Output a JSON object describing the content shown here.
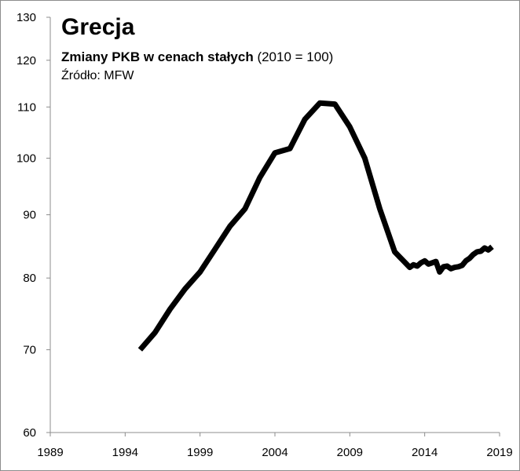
{
  "chart_data": {
    "type": "line",
    "title": "Grecja",
    "subtitle_bold": "Zmiany PKB w cenach stałych",
    "subtitle_rest": "(2010 = 100)",
    "source": "Źródło: MFW",
    "xlabel": "",
    "ylabel": "",
    "y_scale": "log",
    "xlim": [
      1989,
      2019
    ],
    "ylim": [
      60,
      130
    ],
    "x_ticks": [
      1989,
      1994,
      1999,
      2004,
      2009,
      2014,
      2019
    ],
    "y_ticks": [
      60,
      70,
      80,
      90,
      100,
      110,
      120,
      130
    ],
    "grid": false,
    "legend": "none",
    "line_color": "#000000",
    "series": [
      {
        "x": [
          1995,
          1996,
          1997,
          1998,
          1999,
          2000,
          2001,
          2002,
          2003,
          2004,
          2005,
          2006,
          2007,
          2008,
          2009,
          2010,
          2011,
          2012,
          2013,
          2013.25,
          2013.5,
          2013.75,
          2014,
          2014.25,
          2014.5,
          2014.75,
          2015,
          2015.25,
          2015.5,
          2015.75,
          2016,
          2016.25,
          2016.5,
          2016.75,
          2017,
          2017.25,
          2017.5,
          2017.75,
          2018,
          2018.25,
          2018.5
        ],
        "y": [
          70.0,
          72.3,
          75.5,
          78.4,
          80.9,
          84.4,
          88.1,
          91.0,
          96.5,
          101.0,
          101.8,
          107.5,
          110.8,
          110.6,
          106.0,
          100.0,
          91.0,
          84.0,
          81.6,
          82.0,
          81.8,
          82.3,
          82.6,
          82.1,
          82.3,
          82.5,
          80.9,
          81.7,
          81.8,
          81.4,
          81.6,
          81.7,
          81.9,
          82.6,
          83.0,
          83.6,
          84.0,
          84.1,
          84.6,
          84.3,
          84.8
        ]
      }
    ]
  }
}
